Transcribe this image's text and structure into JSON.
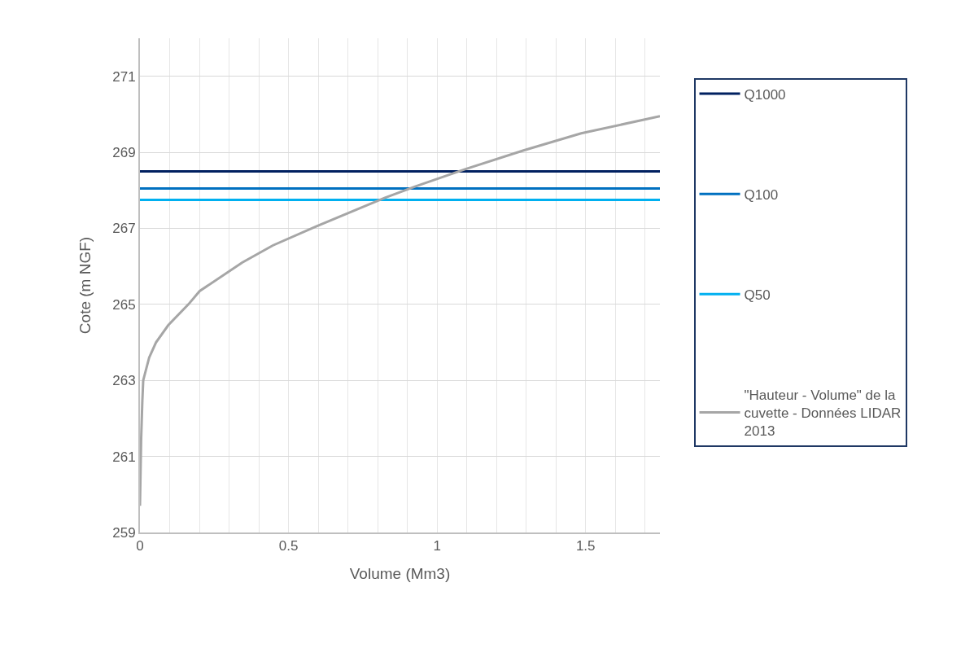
{
  "chart_data": {
    "type": "line",
    "xlabel": "Volume (Mm3)",
    "ylabel": "Cote (m NGF)",
    "xlim": [
      0,
      1.75
    ],
    "xticks": [
      0,
      {
        "value": 0.1,
        "label": null
      },
      {
        "value": 0.2,
        "label": null
      },
      {
        "value": 0.3,
        "label": null
      },
      {
        "value": 0.4,
        "label": null
      },
      0.5,
      {
        "value": 0.6,
        "label": null
      },
      {
        "value": 0.7,
        "label": null
      },
      {
        "value": 0.8,
        "label": null
      },
      {
        "value": 0.9,
        "label": null
      },
      1,
      {
        "value": 1.1,
        "label": null
      },
      {
        "value": 1.2,
        "label": null
      },
      {
        "value": 1.3,
        "label": null
      },
      {
        "value": 1.4,
        "label": null
      },
      1.5,
      {
        "value": 1.6,
        "label": null
      },
      {
        "value": 1.7,
        "label": null
      }
    ],
    "ylim": [
      259,
      272
    ],
    "yticks": [
      259,
      261,
      263,
      265,
      267,
      269,
      271
    ],
    "grid": true,
    "legend": "right",
    "marker": "none",
    "line_style": "solid",
    "series": [
      {
        "name": "Q1000",
        "color": "#002060",
        "x": [
          0,
          1.75
        ],
        "values": [
          268.5,
          268.5
        ]
      },
      {
        "name": "Q100",
        "color": "#0070c0",
        "x": [
          0,
          1.75
        ],
        "values": [
          268.05,
          268.05
        ]
      },
      {
        "name": "Q50",
        "color": "#00b0f0",
        "x": [
          0,
          1.75
        ],
        "values": [
          267.75,
          267.75
        ]
      },
      {
        "name": "\"Hauteur - Volume\" de la cuvette - Données LIDAR 2013",
        "color": "#a6a6a6",
        "x": [
          0,
          0.004,
          0.008,
          0.011,
          0.031,
          0.054,
          0.095,
          0.163,
          0.201,
          0.344,
          0.447,
          0.593,
          0.823,
          0.926,
          1.092,
          1.291,
          1.485,
          1.75
        ],
        "values": [
          259.7,
          261.45,
          262.45,
          263.0,
          263.6,
          264.0,
          264.45,
          265.0,
          265.35,
          266.1,
          266.55,
          267.05,
          267.8,
          268.1,
          268.55,
          269.05,
          269.5,
          269.95
        ]
      }
    ]
  }
}
